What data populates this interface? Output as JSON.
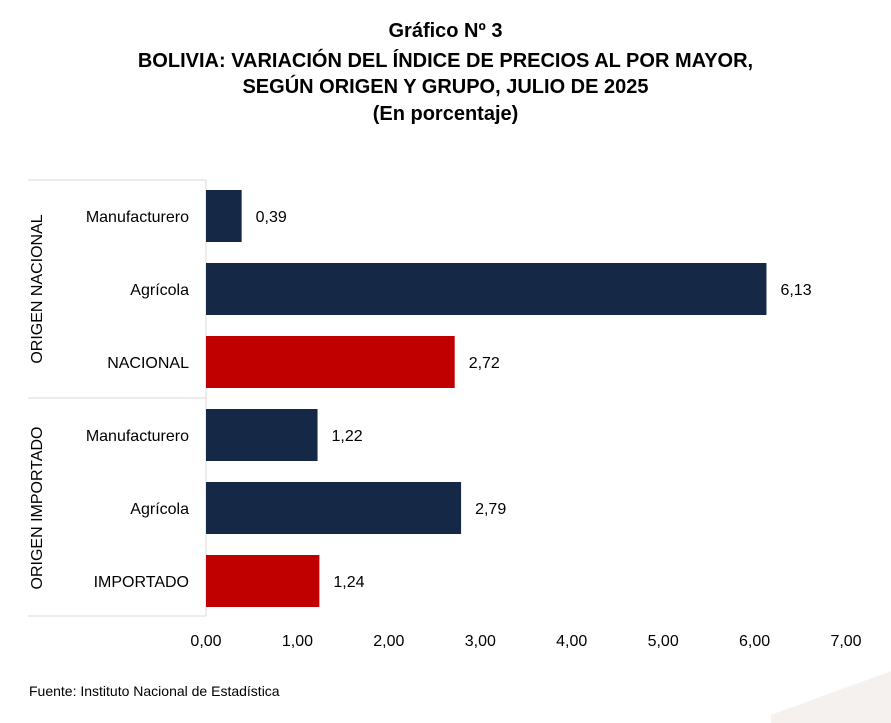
{
  "title": {
    "line1": "Gráfico Nº 3",
    "line2": "BOLIVIA: VARIACIÓN DEL ÍNDICE DE PRECIOS AL POR MAYOR,",
    "line3": "SEGÚN ORIGEN Y GRUPO, JULIO DE 2025",
    "line4": "(En porcentaje)"
  },
  "colors": {
    "group_bar": "#152947",
    "total_bar": "#c00000"
  },
  "chart_data": {
    "type": "bar",
    "orientation": "horizontal",
    "groups": [
      {
        "name": "ORIGEN NACIONAL",
        "items": [
          {
            "label": "Manufacturero",
            "value": 0.39,
            "value_label": "0,39",
            "kind": "group"
          },
          {
            "label": "Agrícola",
            "value": 6.13,
            "value_label": "6,13",
            "kind": "group"
          },
          {
            "label": "NACIONAL",
            "value": 2.72,
            "value_label": "2,72",
            "kind": "total"
          }
        ]
      },
      {
        "name": "ORIGEN IMPORTADO",
        "items": [
          {
            "label": "Manufacturero",
            "value": 1.22,
            "value_label": "1,22",
            "kind": "group"
          },
          {
            "label": "Agrícola",
            "value": 2.79,
            "value_label": "2,79",
            "kind": "group"
          },
          {
            "label": "IMPORTADO",
            "value": 1.24,
            "value_label": "1,24",
            "kind": "total"
          }
        ]
      }
    ],
    "xlim": [
      0,
      7
    ],
    "x_ticks": [
      "0,00",
      "1,00",
      "2,00",
      "3,00",
      "4,00",
      "5,00",
      "6,00",
      "7,00"
    ],
    "grid": false,
    "legend": "none"
  },
  "source": "Fuente: Instituto Nacional de Estadística"
}
